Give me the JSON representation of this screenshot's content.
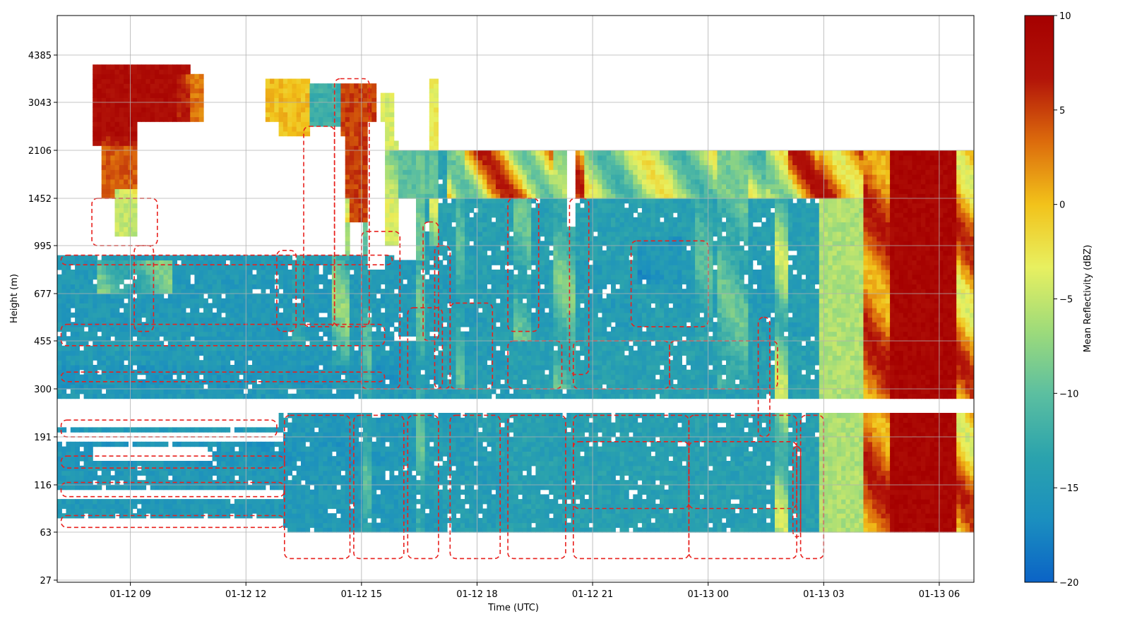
{
  "chart_data": {
    "type": "heatmap",
    "title": "",
    "xlabel": "Time (UTC)",
    "ylabel": "Height (m)",
    "x_ticks": [
      "01-12 09",
      "01-12 12",
      "01-12 15",
      "01-12 18",
      "01-12 21",
      "01-13 00",
      "01-13 03",
      "01-13 06"
    ],
    "x_tick_hours": [
      9,
      12,
      15,
      18,
      21,
      24,
      27,
      30
    ],
    "xlim_hours": [
      7.1,
      30.9
    ],
    "y_ticks": [
      "27",
      "63",
      "116",
      "191",
      "300",
      "455",
      "677",
      "995",
      "1452",
      "2106",
      "3043",
      "4385"
    ],
    "y_scale": "nonlinear (heights on a log-like scale)",
    "grid": true,
    "colorbar": {
      "label": "Mean Reflectivity (dBZ)",
      "range": [
        -20,
        10
      ],
      "ticks": [
        "10",
        "5",
        "0",
        "−5",
        "−10",
        "−15",
        "−20"
      ],
      "colormap": [
        "#0b63c6",
        "#1b8fbf",
        "#2ba3ad",
        "#5cbfa0",
        "#9edb7a",
        "#e8f060",
        "#f2c21a",
        "#dc6b0c",
        "#b21409",
        "#a50000"
      ]
    },
    "contour_color": "#e8201d",
    "contour_style": "dashed",
    "blobs": [
      {
        "t0": 7.1,
        "t1": 18.8,
        "h0": 1,
        "h1": 5,
        "v": -15
      },
      {
        "t0": 18.8,
        "t1": 26.9,
        "h0": 1,
        "h1": 5,
        "v": -14
      },
      {
        "t0": 14.0,
        "t1": 26.9,
        "h0": 5.1,
        "h1": 6.7,
        "v": -15
      },
      {
        "t0": 16.6,
        "t1": 20.8,
        "h0": 1,
        "h1": 9,
        "v": -14
      },
      {
        "t0": 20.8,
        "t1": 26.9,
        "h0": 5,
        "h1": 9,
        "v": -14
      },
      {
        "t0": 26.9,
        "t1": 28.0,
        "h0": 1,
        "h1": 9,
        "v": -6
      },
      {
        "t0": 28.0,
        "t1": 30.9,
        "h0": 1,
        "h1": 9,
        "v": 9
      },
      {
        "t0": 28.0,
        "t1": 28.7,
        "h0": 1,
        "h1": 9,
        "v": 0
      },
      {
        "t0": 30.4,
        "t1": 30.9,
        "h0": 1,
        "h1": 9,
        "v": -4
      },
      {
        "t0": 7.1,
        "t1": 15.7,
        "h0": 2.4,
        "h1": 3.0,
        "v": -16
      },
      {
        "t0": 7.1,
        "t1": 16.0,
        "h0": 4.0,
        "h1": 4.5,
        "v": -16
      },
      {
        "t0": 7.1,
        "t1": 15.5,
        "h0": 4.8,
        "h1": 5.0,
        "v": -14
      },
      {
        "t0": 7.1,
        "t1": 15.8,
        "h0": 5.0,
        "h1": 6.8,
        "v": -15
      },
      {
        "t0": 8.0,
        "t1": 10.6,
        "h0": 9.1,
        "h1": 10.8,
        "v": 8
      },
      {
        "t0": 8.3,
        "t1": 10.1,
        "h0": 8.0,
        "h1": 9.3,
        "v": 4
      },
      {
        "t0": 8.6,
        "t1": 9.6,
        "h0": 7.2,
        "h1": 8.2,
        "v": -5
      },
      {
        "t0": 10.2,
        "t1": 11.5,
        "h0": 9.6,
        "h1": 10.6,
        "v": 3
      },
      {
        "t0": 11.5,
        "t1": 12.5,
        "h0": 9.9,
        "h1": 10.5,
        "v": -14
      },
      {
        "t0": 12.5,
        "t1": 13.6,
        "h0": 9.3,
        "h1": 10.5,
        "v": 0
      },
      {
        "t0": 13.6,
        "t1": 14.5,
        "h0": 9.5,
        "h1": 10.4,
        "v": -12
      },
      {
        "t0": 14.5,
        "t1": 15.4,
        "h0": 7.5,
        "h1": 10.4,
        "v": 5
      },
      {
        "t0": 15.5,
        "t1": 16.0,
        "h0": 7.0,
        "h1": 10.2,
        "v": -4
      },
      {
        "t0": 16.8,
        "t1": 17.0,
        "h0": 7.0,
        "h1": 10.5,
        "v": -3
      },
      {
        "t0": 15.6,
        "t1": 17.0,
        "h0": 8.0,
        "h1": 9.0,
        "v": -10
      },
      {
        "t0": 17.2,
        "t1": 20.8,
        "h0": 8.0,
        "h1": 9.0,
        "v": 7
      },
      {
        "t0": 20.8,
        "t1": 25.5,
        "h0": 8.0,
        "h1": 9.0,
        "v": -2
      },
      {
        "t0": 25.5,
        "t1": 28.0,
        "h0": 8.0,
        "h1": 9.0,
        "v": 8
      },
      {
        "t0": 13.2,
        "t1": 13.5,
        "h0": 5.0,
        "h1": 6.8,
        "v": -12
      },
      {
        "t0": 14.2,
        "t1": 14.7,
        "h0": 4.5,
        "h1": 8.0,
        "v": -7
      },
      {
        "t0": 16.4,
        "t1": 16.7,
        "h0": 1.0,
        "h1": 9.0,
        "v": -9
      },
      {
        "t0": 20.0,
        "t1": 20.5,
        "h0": 4.0,
        "h1": 9.0,
        "v": -8
      },
      {
        "t0": 24.2,
        "t1": 25.0,
        "h0": 4.0,
        "h1": 9.0,
        "v": -9
      },
      {
        "t0": 25.7,
        "t1": 26.1,
        "h0": 1.0,
        "h1": 9.0,
        "v": -4
      },
      {
        "t0": 15.0,
        "t1": 15.3,
        "h0": 1.0,
        "h1": 7.5,
        "v": -10
      },
      {
        "t0": 22.2,
        "t1": 23.3,
        "h0": 6.2,
        "h1": 7.2,
        "v": -17
      },
      {
        "t0": 8.1,
        "t1": 10.1,
        "h0": 6.0,
        "h1": 6.7,
        "v": -8
      },
      {
        "t0": 17.4,
        "t1": 17.7,
        "h0": 4.0,
        "h1": 9.0,
        "v": -10
      },
      {
        "t0": 19.0,
        "t1": 19.4,
        "h0": 5.0,
        "h1": 8.0,
        "v": -9
      },
      {
        "t0": 23.7,
        "t1": 24.1,
        "h0": 5.0,
        "h1": 8.0,
        "v": -10
      }
    ],
    "gaps": [
      {
        "t0": 7.1,
        "t1": 30.9,
        "h0": 3.55,
        "h1": 3.85
      },
      {
        "t0": 7.1,
        "t1": 8.0,
        "h0": 9.2,
        "h1": 11.0
      },
      {
        "t0": 9.2,
        "t1": 12.8,
        "h0": 6.8,
        "h1": 9.6
      },
      {
        "t0": 10.9,
        "t1": 12.5,
        "h0": 9.6,
        "h1": 11.0
      },
      {
        "t0": 13.7,
        "t1": 14.6,
        "h0": 6.8,
        "h1": 9.3
      },
      {
        "t0": 15.2,
        "t1": 15.6,
        "h0": 6.5,
        "h1": 9.6
      },
      {
        "t0": 15.8,
        "t1": 16.8,
        "h0": 9.2,
        "h1": 11.0
      },
      {
        "t0": 17.0,
        "t1": 30.9,
        "h0": 8.98,
        "h1": 11.0
      },
      {
        "t0": 20.3,
        "t1": 20.5,
        "h0": 7.4,
        "h1": 9.0
      },
      {
        "t0": 7.1,
        "t1": 13.0,
        "h0": 1.0,
        "h1": 1.3
      },
      {
        "t0": 7.1,
        "t1": 13.0,
        "h0": 1.75,
        "h1": 1.95
      },
      {
        "t0": 7.1,
        "t1": 13.0,
        "h0": 2.9,
        "h1": 3.15
      },
      {
        "t0": 7.1,
        "t1": 12.8,
        "h0": 3.2,
        "h1": 3.5
      },
      {
        "t0": 8.0,
        "t1": 11.0,
        "h0": 2.55,
        "h1": 2.8
      },
      {
        "t0": 7.1,
        "t1": 11.0,
        "h0": 0,
        "h1": 0.38
      },
      {
        "t0": 15.0,
        "t1": 30.9,
        "h0": 0,
        "h1": 0.38
      },
      {
        "t0": 29.0,
        "t1": 30.9,
        "h0": 0,
        "h1": 0.7
      },
      {
        "t0": 7.1,
        "t1": 11.0,
        "h0": 0.72,
        "h1": 0.7
      }
    ],
    "contours": [
      {
        "t0": 7.2,
        "t1": 15.6,
        "h0": 4.15,
        "h1": 4.35
      },
      {
        "t0": 7.2,
        "t1": 15.6,
        "h0": 4.9,
        "h1": 5.35
      },
      {
        "t0": 7.2,
        "t1": 15.8,
        "h0": 6.6,
        "h1": 6.8
      },
      {
        "t0": 7.2,
        "t1": 12.8,
        "h0": 3.0,
        "h1": 3.35
      },
      {
        "t0": 7.2,
        "t1": 13.0,
        "h0": 1.1,
        "h1": 1.35
      },
      {
        "t0": 7.2,
        "t1": 13.0,
        "h0": 1.75,
        "h1": 2.05
      },
      {
        "t0": 7.2,
        "t1": 13.0,
        "h0": 2.35,
        "h1": 2.6
      },
      {
        "t0": 13.0,
        "t1": 14.7,
        "h0": 0.45,
        "h1": 3.45
      },
      {
        "t0": 14.8,
        "t1": 16.1,
        "h0": 0.45,
        "h1": 3.45
      },
      {
        "t0": 16.2,
        "t1": 17.0,
        "h0": 0.45,
        "h1": 3.45
      },
      {
        "t0": 17.3,
        "t1": 18.6,
        "h0": 0.45,
        "h1": 3.45
      },
      {
        "t0": 18.8,
        "t1": 20.3,
        "h0": 0.45,
        "h1": 3.45
      },
      {
        "t0": 20.5,
        "t1": 23.5,
        "h0": 0.45,
        "h1": 3.45
      },
      {
        "t0": 23.5,
        "t1": 26.3,
        "h0": 0.45,
        "h1": 3.45
      },
      {
        "t0": 26.4,
        "t1": 27.0,
        "h0": 0.45,
        "h1": 3.45
      },
      {
        "t0": 20.5,
        "t1": 23.5,
        "h0": 1.5,
        "h1": 2.9
      },
      {
        "t0": 23.5,
        "t1": 26.3,
        "h0": 1.5,
        "h1": 2.9
      },
      {
        "t0": 16.2,
        "t1": 17.1,
        "h0": 4.0,
        "h1": 5.7
      },
      {
        "t0": 17.3,
        "t1": 18.4,
        "h0": 4.0,
        "h1": 5.8
      },
      {
        "t0": 18.8,
        "t1": 20.2,
        "h0": 4.0,
        "h1": 5.0
      },
      {
        "t0": 20.5,
        "t1": 23.0,
        "h0": 4.0,
        "h1": 5.0
      },
      {
        "t0": 23.0,
        "t1": 25.8,
        "h0": 4.0,
        "h1": 5.0
      },
      {
        "t0": 22.0,
        "t1": 24.0,
        "h0": 5.3,
        "h1": 7.1
      },
      {
        "t0": 15.0,
        "t1": 16.0,
        "h0": 4.0,
        "h1": 7.3
      },
      {
        "t0": 16.9,
        "t1": 17.3,
        "h0": 4.0,
        "h1": 7.0
      },
      {
        "t0": 18.8,
        "t1": 19.6,
        "h0": 5.2,
        "h1": 8.0
      },
      {
        "t0": 20.4,
        "t1": 20.9,
        "h0": 4.3,
        "h1": 8.0
      },
      {
        "t0": 8.0,
        "t1": 9.7,
        "h0": 7.0,
        "h1": 8.0
      },
      {
        "t0": 9.1,
        "t1": 9.6,
        "h0": 5.2,
        "h1": 7.0
      },
      {
        "t0": 12.8,
        "t1": 13.3,
        "h0": 5.2,
        "h1": 6.9
      },
      {
        "t0": 13.5,
        "t1": 14.3,
        "h0": 5.3,
        "h1": 9.5
      },
      {
        "t0": 14.3,
        "t1": 15.2,
        "h0": 5.3,
        "h1": 10.5
      },
      {
        "t0": 26.2,
        "t1": 26.4,
        "h0": 0.9,
        "h1": 2.8
      },
      {
        "t0": 25.3,
        "t1": 25.6,
        "h0": 3.0,
        "h1": 5.5
      },
      {
        "t0": 16.6,
        "t1": 17.0,
        "h0": 5.0,
        "h1": 7.5
      }
    ]
  }
}
